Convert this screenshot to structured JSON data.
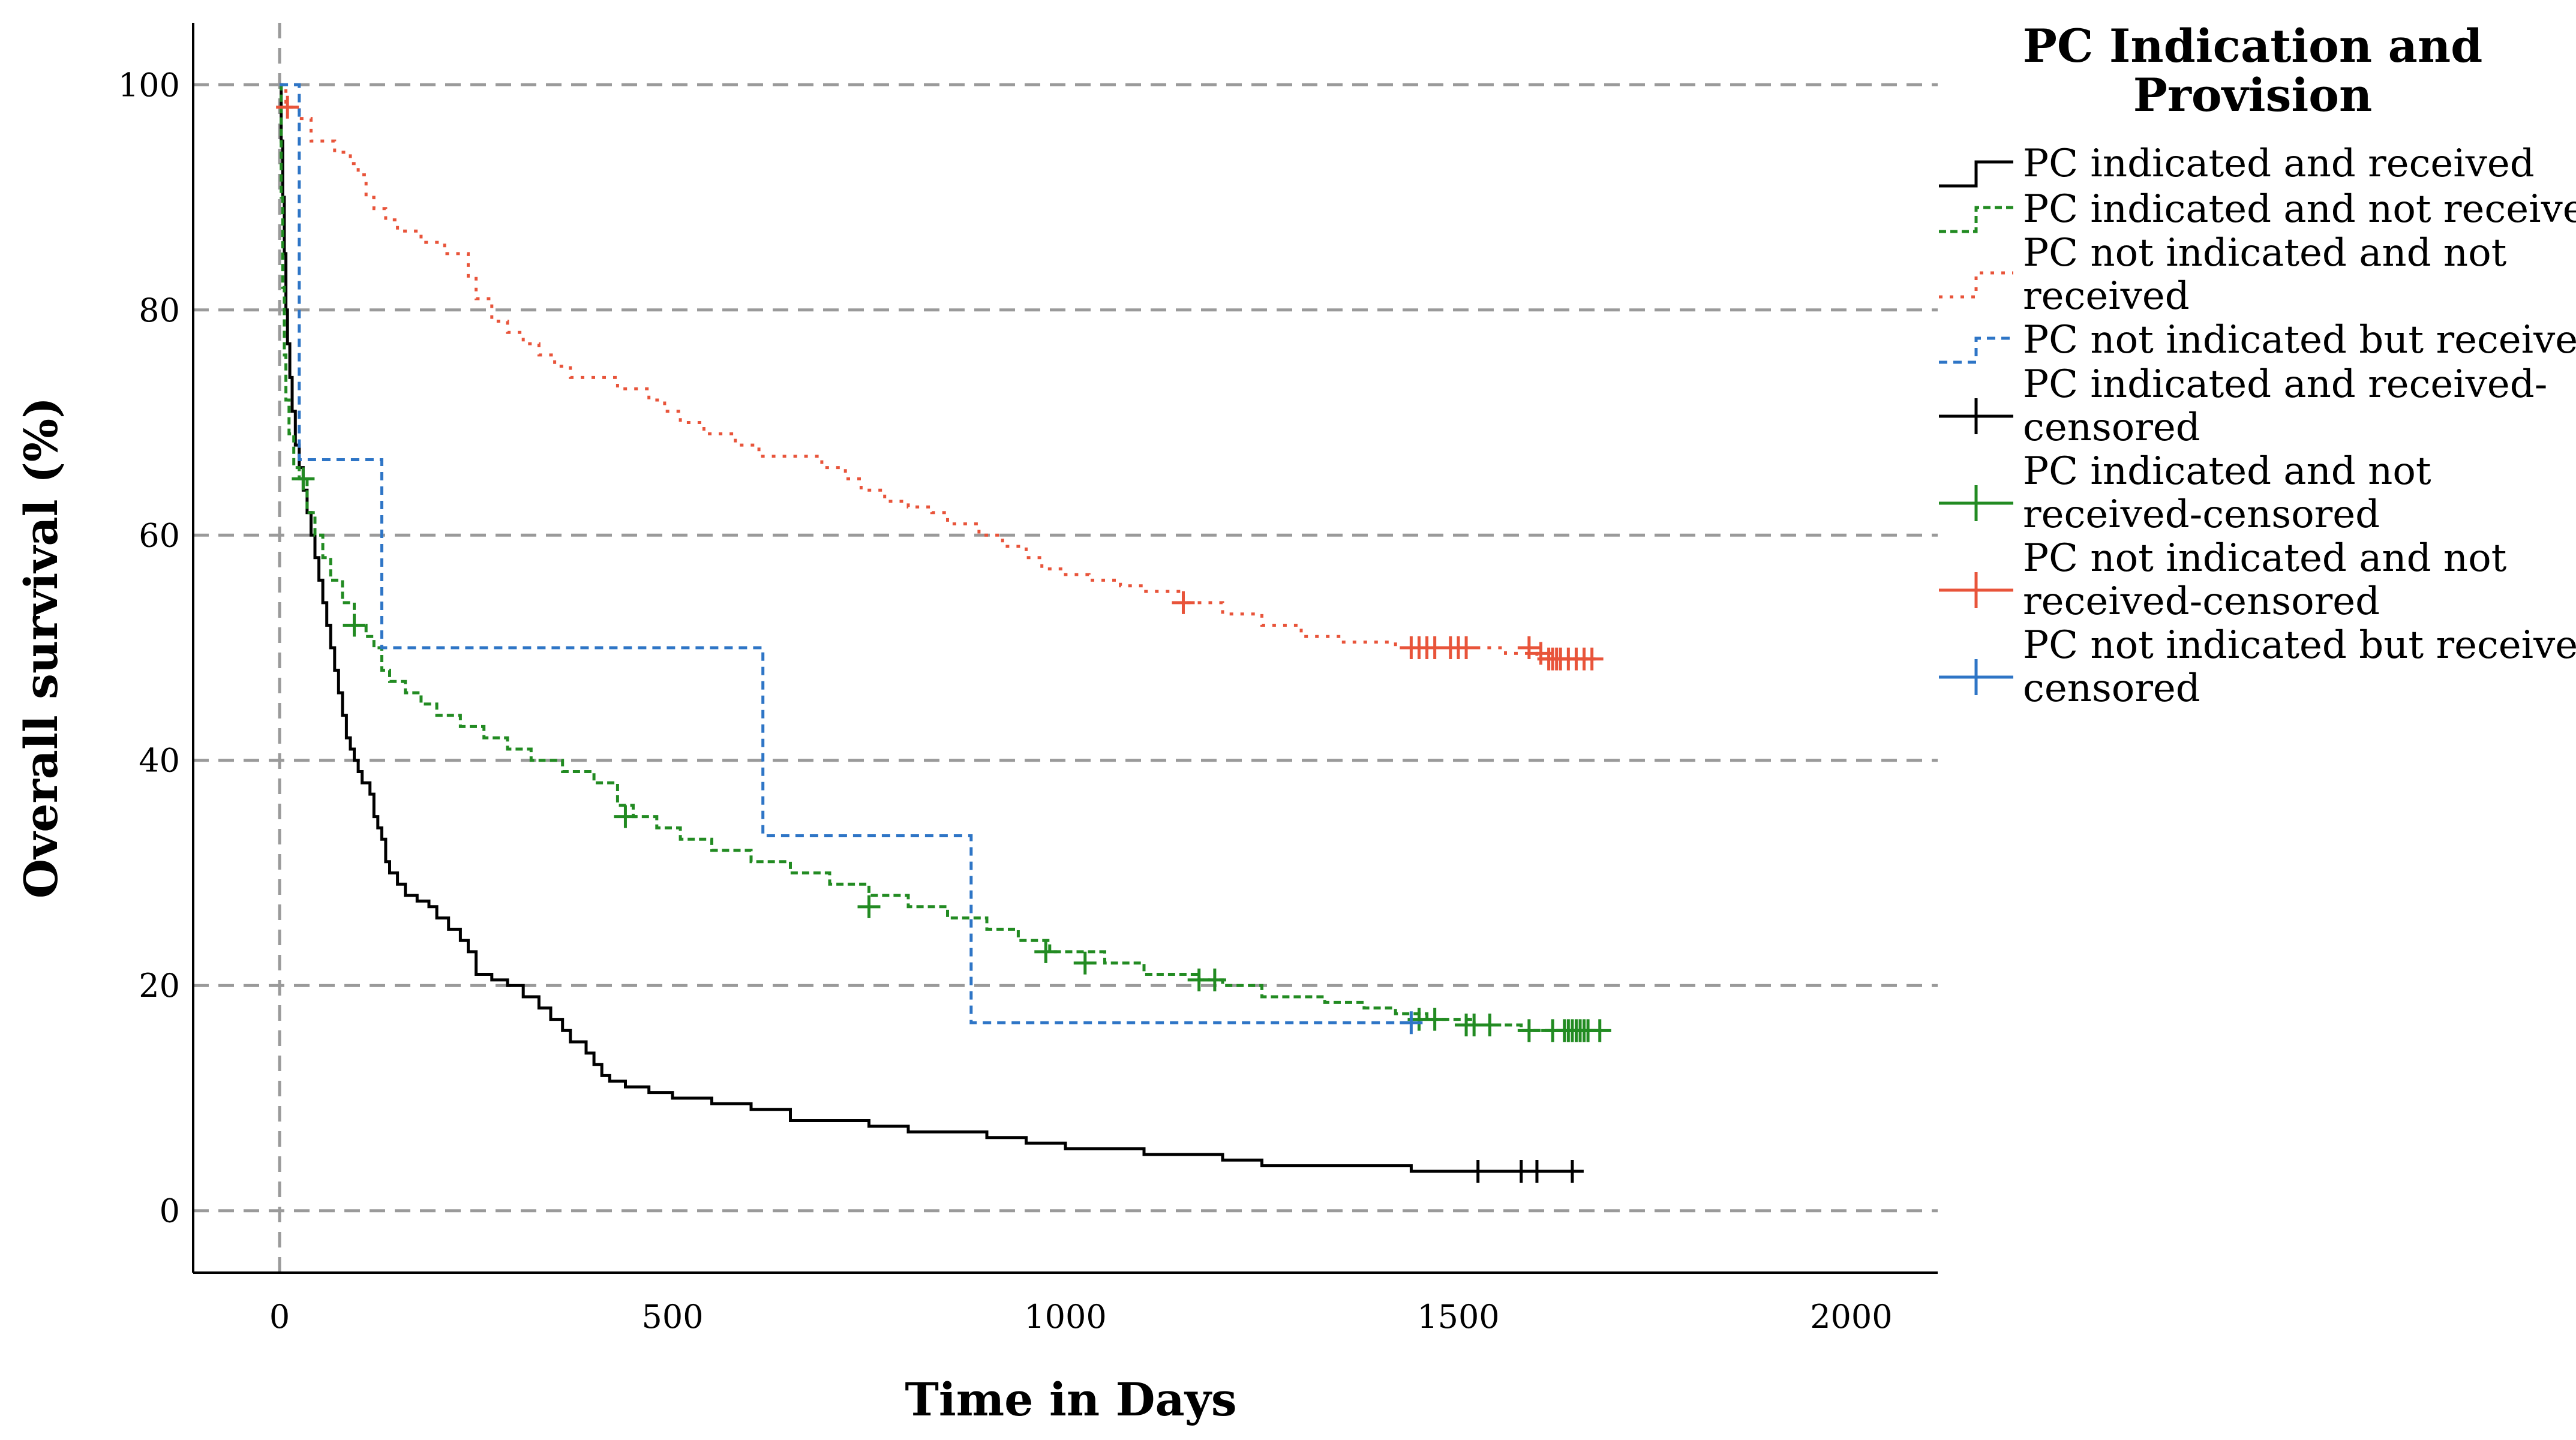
{
  "chart_data": {
    "type": "line",
    "subtype": "kaplan-meier-step",
    "title": "",
    "xlabel": "Time in Days",
    "ylabel": "Overall survival (%)",
    "xlim": [
      -110,
      2110
    ],
    "ylim": [
      -5.5,
      105.5
    ],
    "xticks": [
      0,
      500,
      1000,
      1500,
      2000
    ],
    "yticks": [
      0,
      20,
      40,
      60,
      80,
      100
    ],
    "xtick_labels": [
      "0",
      "500",
      "1000",
      "1500",
      "2000"
    ],
    "ytick_labels": [
      "0",
      "20",
      "40",
      "60",
      "80",
      "100"
    ],
    "grid": "horizontal dashed at y ticks, vertical dashed at x=0",
    "legend": {
      "title_lines": [
        "PC Indication and",
        "Provision"
      ],
      "placement": "right",
      "entries": [
        {
          "label_lines": [
            "PC indicated and received"
          ],
          "series": 0,
          "kind": "line"
        },
        {
          "label_lines": [
            "PC indicated and not received"
          ],
          "series": 1,
          "kind": "line"
        },
        {
          "label_lines": [
            "PC not indicated and not",
            "received"
          ],
          "series": 2,
          "kind": "line"
        },
        {
          "label_lines": [
            "PC not indicated but received"
          ],
          "series": 3,
          "kind": "line"
        },
        {
          "label_lines": [
            "PC indicated and received-",
            "censored"
          ],
          "series": 0,
          "kind": "censor"
        },
        {
          "label_lines": [
            "PC indicated and not",
            "received-censored"
          ],
          "series": 1,
          "kind": "censor"
        },
        {
          "label_lines": [
            "PC not indicated and not",
            "received-censored"
          ],
          "series": 2,
          "kind": "censor"
        },
        {
          "label_lines": [
            "PC not indicated but received-",
            "censored"
          ],
          "series": 3,
          "kind": "censor"
        }
      ]
    },
    "series": [
      {
        "name": "PC indicated and received",
        "color": "#000000",
        "dash": "",
        "steps": [
          [
            0,
            100
          ],
          [
            2,
            95
          ],
          [
            4,
            90
          ],
          [
            6,
            85
          ],
          [
            8,
            80
          ],
          [
            10,
            77
          ],
          [
            13,
            74
          ],
          [
            16,
            71
          ],
          [
            20,
            68
          ],
          [
            25,
            66
          ],
          [
            30,
            64
          ],
          [
            35,
            62
          ],
          [
            40,
            60
          ],
          [
            45,
            58
          ],
          [
            50,
            56
          ],
          [
            55,
            54
          ],
          [
            60,
            52
          ],
          [
            65,
            50
          ],
          [
            70,
            48
          ],
          [
            75,
            46
          ],
          [
            80,
            44
          ],
          [
            85,
            42
          ],
          [
            90,
            41
          ],
          [
            95,
            40
          ],
          [
            100,
            39
          ],
          [
            105,
            38
          ],
          [
            115,
            37
          ],
          [
            120,
            35
          ],
          [
            125,
            34
          ],
          [
            130,
            33
          ],
          [
            135,
            31
          ],
          [
            140,
            30
          ],
          [
            150,
            29
          ],
          [
            160,
            28
          ],
          [
            175,
            27.5
          ],
          [
            190,
            27
          ],
          [
            200,
            26
          ],
          [
            215,
            25
          ],
          [
            230,
            24
          ],
          [
            240,
            23
          ],
          [
            250,
            21
          ],
          [
            270,
            20.5
          ],
          [
            290,
            20
          ],
          [
            310,
            19
          ],
          [
            330,
            18
          ],
          [
            345,
            17
          ],
          [
            360,
            16
          ],
          [
            370,
            15
          ],
          [
            390,
            14
          ],
          [
            400,
            13
          ],
          [
            410,
            12
          ],
          [
            420,
            11.5
          ],
          [
            440,
            11
          ],
          [
            470,
            10.5
          ],
          [
            500,
            10
          ],
          [
            550,
            9.5
          ],
          [
            600,
            9
          ],
          [
            650,
            8
          ],
          [
            750,
            7.5
          ],
          [
            800,
            7
          ],
          [
            900,
            6.5
          ],
          [
            950,
            6
          ],
          [
            1000,
            5.5
          ],
          [
            1100,
            5
          ],
          [
            1200,
            4.5
          ],
          [
            1250,
            4
          ],
          [
            1330,
            4
          ],
          [
            1440,
            3.5
          ],
          [
            1640,
            3.5
          ]
        ],
        "censored": [
          [
            1525,
            3.5
          ],
          [
            1580,
            3.5
          ],
          [
            1600,
            3.5
          ],
          [
            1645,
            3.5
          ]
        ]
      },
      {
        "name": "PC indicated and not received",
        "color": "#228B22",
        "dash": "12,7",
        "steps": [
          [
            0,
            100
          ],
          [
            2,
            90
          ],
          [
            4,
            82
          ],
          [
            6,
            76
          ],
          [
            8,
            72
          ],
          [
            12,
            69
          ],
          [
            18,
            66
          ],
          [
            25,
            65
          ],
          [
            35,
            62
          ],
          [
            45,
            60
          ],
          [
            55,
            58
          ],
          [
            65,
            56
          ],
          [
            80,
            54
          ],
          [
            95,
            52
          ],
          [
            110,
            51
          ],
          [
            120,
            50
          ],
          [
            130,
            48
          ],
          [
            140,
            47
          ],
          [
            160,
            46
          ],
          [
            180,
            45
          ],
          [
            200,
            44
          ],
          [
            230,
            43
          ],
          [
            260,
            42
          ],
          [
            290,
            41
          ],
          [
            320,
            40
          ],
          [
            360,
            39
          ],
          [
            400,
            38
          ],
          [
            430,
            36
          ],
          [
            450,
            35
          ],
          [
            480,
            34
          ],
          [
            510,
            33
          ],
          [
            550,
            32
          ],
          [
            600,
            31
          ],
          [
            650,
            30
          ],
          [
            700,
            29
          ],
          [
            750,
            28
          ],
          [
            800,
            27
          ],
          [
            850,
            26
          ],
          [
            900,
            25
          ],
          [
            940,
            24
          ],
          [
            980,
            23
          ],
          [
            1050,
            22
          ],
          [
            1100,
            21
          ],
          [
            1170,
            20.5
          ],
          [
            1200,
            20
          ],
          [
            1250,
            19
          ],
          [
            1330,
            18.5
          ],
          [
            1380,
            18
          ],
          [
            1420,
            17.5
          ],
          [
            1460,
            17
          ],
          [
            1520,
            16.5
          ],
          [
            1580,
            16
          ],
          [
            1680,
            16
          ]
        ],
        "censored": [
          [
            30,
            65
          ],
          [
            95,
            52
          ],
          [
            440,
            35
          ],
          [
            750,
            27
          ],
          [
            975,
            23
          ],
          [
            1025,
            22
          ],
          [
            1170,
            20.5
          ],
          [
            1190,
            20.5
          ],
          [
            1450,
            17
          ],
          [
            1470,
            17
          ],
          [
            1510,
            16.5
          ],
          [
            1520,
            16.5
          ],
          [
            1540,
            16.5
          ],
          [
            1590,
            16
          ],
          [
            1620,
            16
          ],
          [
            1635,
            16
          ],
          [
            1640,
            16
          ],
          [
            1645,
            16
          ],
          [
            1650,
            16
          ],
          [
            1655,
            16
          ],
          [
            1660,
            16
          ],
          [
            1665,
            16
          ],
          [
            1680,
            16
          ]
        ]
      },
      {
        "name": "PC not indicated and not received",
        "color": "#E8543A",
        "dash": "6,12",
        "steps": [
          [
            0,
            100
          ],
          [
            8,
            98
          ],
          [
            25,
            97
          ],
          [
            40,
            95
          ],
          [
            70,
            94
          ],
          [
            90,
            93
          ],
          [
            100,
            92
          ],
          [
            110,
            90
          ],
          [
            120,
            89
          ],
          [
            135,
            88
          ],
          [
            150,
            87
          ],
          [
            180,
            86
          ],
          [
            210,
            85
          ],
          [
            240,
            83
          ],
          [
            250,
            81
          ],
          [
            270,
            79
          ],
          [
            290,
            78
          ],
          [
            310,
            77
          ],
          [
            330,
            76
          ],
          [
            350,
            75
          ],
          [
            370,
            74
          ],
          [
            400,
            74
          ],
          [
            430,
            73
          ],
          [
            470,
            72
          ],
          [
            490,
            71
          ],
          [
            510,
            70
          ],
          [
            540,
            69
          ],
          [
            580,
            68
          ],
          [
            610,
            67
          ],
          [
            650,
            67
          ],
          [
            690,
            66
          ],
          [
            720,
            65
          ],
          [
            740,
            64
          ],
          [
            770,
            63
          ],
          [
            800,
            62.5
          ],
          [
            830,
            62
          ],
          [
            850,
            61
          ],
          [
            890,
            60
          ],
          [
            920,
            59
          ],
          [
            950,
            58
          ],
          [
            970,
            57
          ],
          [
            1000,
            56.5
          ],
          [
            1030,
            56
          ],
          [
            1070,
            55.5
          ],
          [
            1100,
            55
          ],
          [
            1150,
            54
          ],
          [
            1200,
            53
          ],
          [
            1250,
            52
          ],
          [
            1300,
            51
          ],
          [
            1350,
            50.5
          ],
          [
            1420,
            50
          ],
          [
            1500,
            50
          ],
          [
            1560,
            49.5
          ],
          [
            1600,
            49
          ],
          [
            1670,
            49
          ]
        ],
        "censored": [
          [
            10,
            98
          ],
          [
            1150,
            54
          ],
          [
            1440,
            50
          ],
          [
            1450,
            50
          ],
          [
            1460,
            50
          ],
          [
            1470,
            50
          ],
          [
            1490,
            50
          ],
          [
            1500,
            50
          ],
          [
            1510,
            50
          ],
          [
            1590,
            50
          ],
          [
            1605,
            49.5
          ],
          [
            1615,
            49
          ],
          [
            1620,
            49
          ],
          [
            1625,
            49
          ],
          [
            1630,
            49
          ],
          [
            1640,
            49
          ],
          [
            1650,
            49
          ],
          [
            1660,
            49
          ],
          [
            1670,
            49
          ]
        ]
      },
      {
        "name": "PC not indicated but received",
        "color": "#2E75C6",
        "dash": "14,10",
        "steps": [
          [
            0,
            100
          ],
          [
            25,
            100
          ],
          [
            25,
            66.7
          ],
          [
            130,
            66.7
          ],
          [
            130,
            50
          ],
          [
            615,
            50
          ],
          [
            615,
            33.3
          ],
          [
            880,
            33.3
          ],
          [
            880,
            16.7
          ],
          [
            1440,
            16.7
          ]
        ],
        "censored": [
          [
            1440,
            16.7
          ]
        ]
      }
    ]
  }
}
